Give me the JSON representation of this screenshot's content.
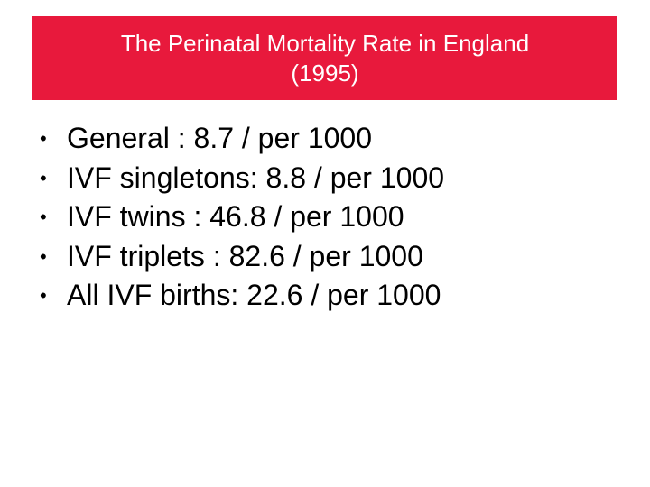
{
  "title": {
    "line1": "The Perinatal Mortality Rate in England",
    "line2": "(1995)",
    "background_color": "#e8193c",
    "text_color": "#ffffff"
  },
  "bullet_symbol": "•",
  "bullets": [
    "General : 8.7 / per 1000",
    "IVF singletons: 8.8 / per 1000",
    "IVF twins : 46.8 / per 1000",
    "IVF triplets : 82.6 / per 1000",
    "All IVF births: 22.6 / per 1000"
  ]
}
